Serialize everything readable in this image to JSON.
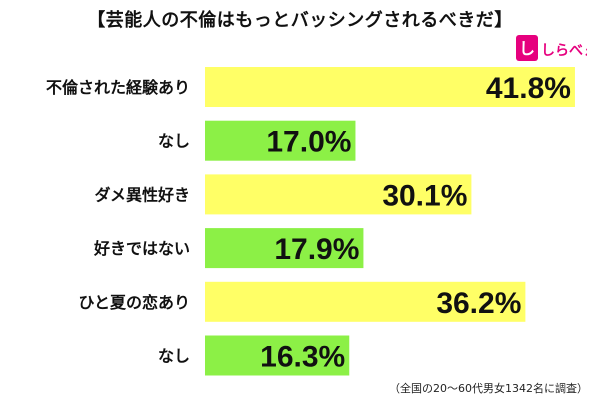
{
  "page": {
    "title": "【芸能人の不倫はもっとバッシングされるべきだ】",
    "footnote": "（全国の20～60代男女1342名に調査）",
    "logo_text": "しらべぇ"
  },
  "colors": {
    "yellow_bar": "#FFFF66",
    "green_bar": "#8CF046",
    "logo_pink": "#E6007E",
    "text": "#111111"
  },
  "chart_data": {
    "type": "bar",
    "orientation": "horizontal",
    "categories": [
      "不倫された経験あり",
      "なし",
      "ダメ異性好き",
      "好きではない",
      "ひと夏の恋あり",
      "なし"
    ],
    "values": [
      41.8,
      17.0,
      30.1,
      17.9,
      36.2,
      16.3
    ],
    "labels": [
      "41.8%",
      "17.0%",
      "30.1%",
      "17.9%",
      "36.2%",
      "16.3%"
    ],
    "bar_colors": [
      "yellow",
      "green",
      "yellow",
      "green",
      "yellow",
      "green"
    ],
    "xlim": [
      0,
      43.5
    ],
    "grid": false,
    "legend": "none"
  }
}
